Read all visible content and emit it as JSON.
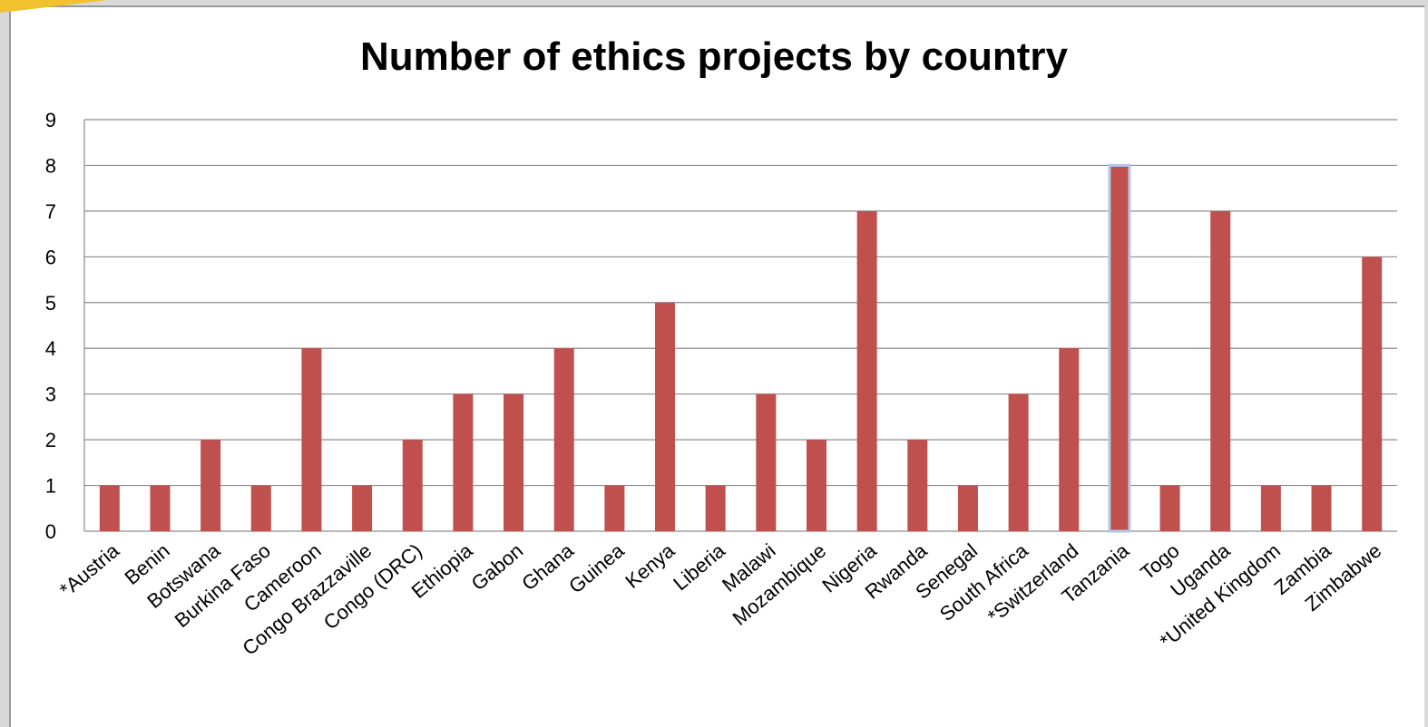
{
  "chart_data": {
    "type": "bar",
    "title": "Number of ethics projects by country",
    "xlabel": "",
    "ylabel": "",
    "ylim": [
      0,
      9
    ],
    "yticks": [
      0,
      1,
      2,
      3,
      4,
      5,
      6,
      7,
      8,
      9
    ],
    "grid": true,
    "legend": "none",
    "bar_color": "#c0504d",
    "highlight_outline_color": "#b4c7e7",
    "highlighted_category": "Tanzania",
    "categories": [
      "*Austria",
      "Benin",
      "Botswana",
      "Burkina Faso",
      "Cameroon",
      "Congo Brazzaville",
      "Congo (DRC)",
      "Ethiopia",
      "Gabon",
      "Ghana",
      "Guinea",
      "Kenya",
      "Liberia",
      "Malawi",
      "Mozambique",
      "Nigeria",
      "Rwanda",
      "Senegal",
      "South Africa",
      "*Switzerland",
      "Tanzania",
      "Togo",
      "Uganda",
      "*United Kingdom",
      "Zambia",
      "Zimbabwe"
    ],
    "values": [
      1,
      1,
      2,
      1,
      4,
      1,
      2,
      3,
      3,
      4,
      1,
      5,
      1,
      3,
      2,
      7,
      2,
      1,
      3,
      4,
      8,
      1,
      7,
      1,
      1,
      6
    ]
  }
}
